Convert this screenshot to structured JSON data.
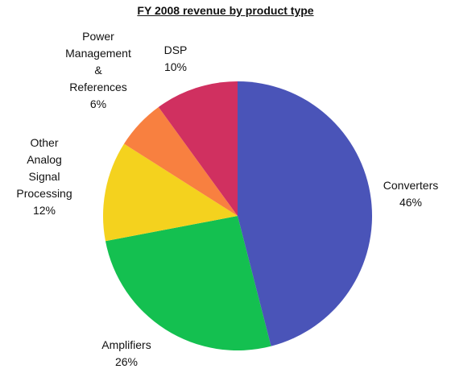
{
  "chart_data": {
    "type": "pie",
    "title": "FY 2008 revenue by product type",
    "categories": [
      "Converters",
      "Amplifiers",
      "Other Analog Signal Processing",
      "Power Management & References",
      "DSP"
    ],
    "values": [
      46,
      26,
      12,
      6,
      10
    ],
    "value_labels": [
      "46%",
      "26%",
      "12%",
      "6%",
      "10%"
    ],
    "colors": [
      "#4a54b8",
      "#14c050",
      "#f4d21e",
      "#f88040",
      "#d03060"
    ]
  }
}
